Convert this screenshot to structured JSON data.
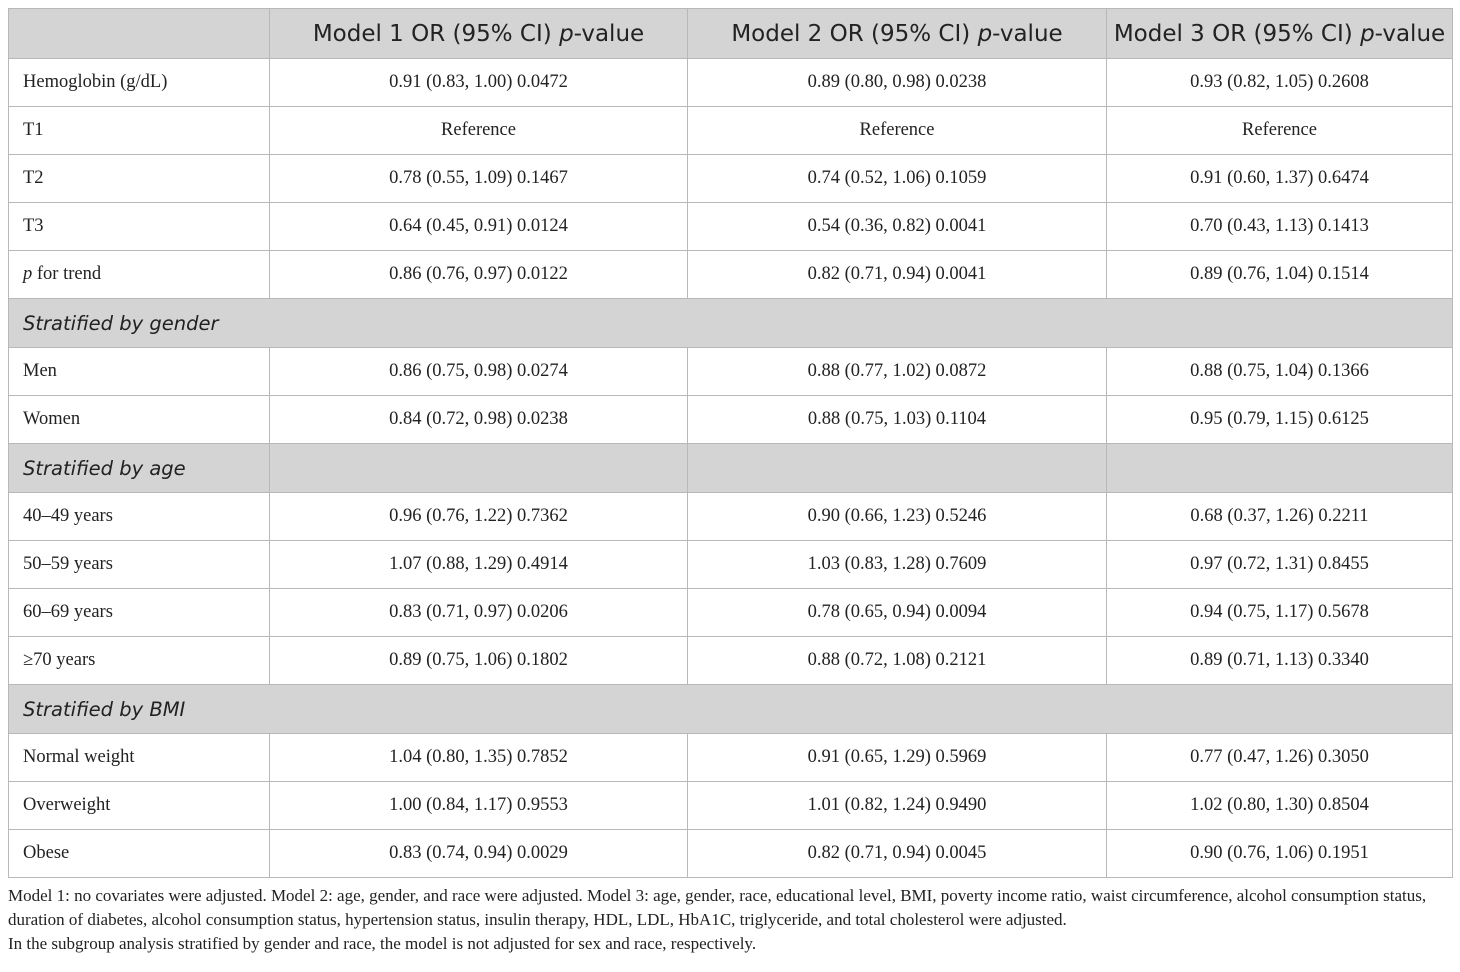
{
  "table": {
    "headers": [
      "",
      {
        "pre": "Model 1 OR (95% CI) ",
        "em": "p",
        "post": "-value"
      },
      {
        "pre": "Model 2 OR (95% CI) ",
        "em": "p",
        "post": "-value"
      },
      {
        "pre": "Model 3 OR (95% CI) ",
        "em": "p",
        "post": "-value"
      }
    ],
    "rows": [
      {
        "type": "data",
        "label": "Hemoglobin (g/dL)",
        "values": [
          "0.91 (0.83, 1.00) 0.0472",
          "0.89 (0.80, 0.98) 0.0238",
          "0.93 (0.82, 1.05) 0.2608"
        ]
      },
      {
        "type": "data",
        "label": "T1",
        "values": [
          "Reference",
          "Reference",
          "Reference"
        ]
      },
      {
        "type": "data",
        "label": "T2",
        "values": [
          "0.78 (0.55, 1.09) 0.1467",
          "0.74 (0.52, 1.06) 0.1059",
          "0.91 (0.60, 1.37) 0.6474"
        ]
      },
      {
        "type": "data",
        "label": "T3",
        "values": [
          "0.64 (0.45, 0.91) 0.0124",
          "0.54 (0.36, 0.82) 0.0041",
          "0.70 (0.43, 1.13) 0.1413"
        ]
      },
      {
        "type": "data",
        "label_em": "p",
        "label": " for trend",
        "values": [
          "0.86 (0.76, 0.97) 0.0122",
          "0.82 (0.71, 0.94) 0.0041",
          "0.89 (0.76, 1.04) 0.1514"
        ]
      },
      {
        "type": "section",
        "label": "Stratified by gender",
        "span": 4
      },
      {
        "type": "data",
        "label": "Men",
        "values": [
          "0.86 (0.75, 0.98) 0.0274",
          "0.88 (0.77, 1.02) 0.0872",
          "0.88 (0.75, 1.04) 0.1366"
        ]
      },
      {
        "type": "data",
        "label": "Women",
        "values": [
          "0.84 (0.72, 0.98) 0.0238",
          "0.88 (0.75, 1.03) 0.1104",
          "0.95 (0.79, 1.15) 0.6125"
        ]
      },
      {
        "type": "section",
        "label": "Stratified by age",
        "span": 1
      },
      {
        "type": "data",
        "label": "40–49 years",
        "values": [
          "0.96 (0.76, 1.22) 0.7362",
          "0.90 (0.66, 1.23) 0.5246",
          "0.68 (0.37, 1.26) 0.2211"
        ]
      },
      {
        "type": "data",
        "label": "50–59 years",
        "values": [
          "1.07 (0.88, 1.29) 0.4914",
          "1.03 (0.83, 1.28) 0.7609",
          "0.97 (0.72, 1.31) 0.8455"
        ]
      },
      {
        "type": "data",
        "label": "60–69 years",
        "values": [
          "0.83 (0.71, 0.97) 0.0206",
          "0.78 (0.65, 0.94) 0.0094",
          "0.94 (0.75, 1.17) 0.5678"
        ]
      },
      {
        "type": "data",
        "label": "≥70 years",
        "values": [
          "0.89 (0.75, 1.06) 0.1802",
          "0.88 (0.72, 1.08) 0.2121",
          "0.89 (0.71, 1.13) 0.3340"
        ]
      },
      {
        "type": "section",
        "label": "Stratified by BMI",
        "span": 4
      },
      {
        "type": "data",
        "label": "Normal weight",
        "values": [
          "1.04 (0.80, 1.35) 0.7852",
          "0.91 (0.65, 1.29) 0.5969",
          "0.77 (0.47, 1.26) 0.3050"
        ]
      },
      {
        "type": "data",
        "label": "Overweight",
        "values": [
          "1.00 (0.84, 1.17) 0.9553",
          "1.01 (0.82, 1.24) 0.9490",
          "1.02 (0.80, 1.30) 0.8504"
        ]
      },
      {
        "type": "data",
        "label": "Obese",
        "values": [
          "0.83 (0.74, 0.94) 0.0029",
          "0.82 (0.71, 0.94) 0.0045",
          "0.90 (0.76, 1.06) 0.1951"
        ]
      }
    ]
  },
  "footnotes": [
    "Model 1: no covariates were adjusted. Model 2: age, gender, and race were adjusted. Model 3: age, gender, race, educational level, BMI, poverty income ratio, waist circumference, alcohol consumption status, duration of diabetes, alcohol consumption status, hypertension status, insulin therapy, HDL, LDL, HbA1C, triglyceride, and total cholesterol were adjusted.",
    "In the subgroup analysis stratified by gender and race, the model is not adjusted for sex and race, respectively."
  ],
  "colors": {
    "header_bg": "#d4d4d4",
    "section_bg": "#d4d4d4",
    "border": "#b8b8b8",
    "text": "#222222"
  }
}
